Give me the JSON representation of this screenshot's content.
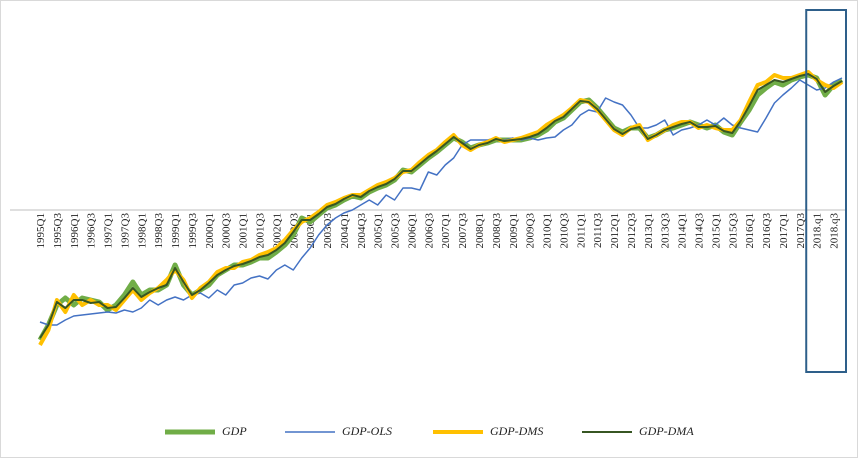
{
  "chart_data": {
    "type": "line",
    "categories": [
      "1995Q1",
      null,
      "1995Q3",
      null,
      "1996Q1",
      null,
      "1996Q3",
      null,
      "1997Q1",
      null,
      "1997Q3",
      null,
      "1998Q1",
      null,
      "1998Q3",
      null,
      "1999Q1",
      null,
      "1999Q3",
      null,
      "2000Q1",
      null,
      "2000Q3",
      null,
      "2001Q1",
      null,
      "2001Q3",
      null,
      "2002Q1",
      null,
      "2002Q3",
      null,
      "2003Q1",
      null,
      "2003Q3",
      null,
      "2004Q1",
      null,
      "2004Q3",
      null,
      "2005Q1",
      null,
      "2005Q3",
      null,
      "2006Q1",
      null,
      "2006Q3",
      null,
      "2007Q1",
      null,
      "2007Q3",
      null,
      "2008Q1",
      null,
      "2008Q3",
      null,
      "2009Q1",
      null,
      "2009Q3",
      null,
      "2010Q1",
      null,
      "2010Q3",
      null,
      "2011Q1",
      null,
      "2011Q3",
      null,
      "2012Q1",
      null,
      "2012Q3",
      null,
      "2013Q1",
      null,
      "2013Q3",
      null,
      "2014Q1",
      null,
      "2014Q3",
      null,
      "2015Q1",
      null,
      "2015Q3",
      null,
      "2016Q1",
      null,
      "2016Q3",
      null,
      "2017Q1",
      null,
      "2017Q3",
      null,
      "2018.q1",
      null,
      "2018.q3",
      null
    ],
    "series": [
      {
        "name": "GDP",
        "color": "#70ad47",
        "values": [
          -13,
          -11.5,
          -9.5,
          -8.8,
          -9.5,
          -8.8,
          -9,
          -9.2,
          -10,
          -9.5,
          -8.5,
          -7.2,
          -8.5,
          -8,
          -8,
          -7.5,
          -5.5,
          -7.5,
          -8.5,
          -8,
          -7.5,
          -6.5,
          -6,
          -5.5,
          -5.5,
          -5.2,
          -4.8,
          -4.8,
          -4.2,
          -3.5,
          -2.5,
          -0.8,
          -1.2,
          -0.5,
          0.2,
          0.5,
          1,
          1.4,
          1.2,
          1.8,
          2.2,
          2.5,
          3,
          4,
          3.8,
          4.5,
          5.2,
          5.8,
          6.5,
          7.2,
          6.8,
          6.2,
          6.5,
          6.7,
          7,
          7,
          7,
          7,
          7.2,
          7.5,
          8,
          8.8,
          9.2,
          10,
          10.8,
          11,
          10.2,
          9.2,
          8.2,
          7.8,
          8.2,
          8.2,
          7.2,
          7.5,
          8,
          8.2,
          8.5,
          8.8,
          8.5,
          8.2,
          8.5,
          7.8,
          7.5,
          8.8,
          10,
          11.5,
          12.2,
          12.8,
          12.5,
          13,
          13.3,
          13.5,
          13.2,
          11.5,
          12.5,
          13
        ]
      },
      {
        "name": "GDP-OLS",
        "color": "#4472c4",
        "values": [
          -11.2,
          -11.5,
          -11.5,
          -11,
          -10.6,
          -10.5,
          -10.4,
          -10.3,
          -10.2,
          -10.3,
          -10,
          -10.2,
          -9.8,
          -9,
          -9.5,
          -9,
          -8.7,
          -9,
          -8.5,
          -8.3,
          -8.8,
          -8,
          -8.5,
          -7.5,
          -7.3,
          -6.8,
          -6.6,
          -6.9,
          -6,
          -5.5,
          -6,
          -4.8,
          -3.8,
          -2.5,
          -1.5,
          -0.8,
          -0.3,
          0,
          0.5,
          1,
          0.5,
          1.5,
          1,
          2.2,
          2.2,
          2,
          3.8,
          3.5,
          4.5,
          5.2,
          6.5,
          7,
          7,
          7,
          7.2,
          7,
          7.2,
          7,
          7.2,
          7,
          7.2,
          7.3,
          8,
          8.5,
          9.5,
          10,
          9.8,
          11.2,
          10.8,
          10.5,
          9.5,
          8.2,
          8.2,
          8.5,
          9,
          7.5,
          8,
          8.2,
          8.5,
          9,
          8.5,
          9.2,
          8.5,
          8.2,
          8,
          7.8,
          9.2,
          10.7,
          11.5,
          12.2,
          13,
          12.5,
          12,
          12.2,
          12.8,
          13.2
        ]
      },
      {
        "name": "GDP-DMS",
        "color": "#ffc000",
        "values": [
          -13.5,
          -12,
          -9,
          -10.2,
          -8.5,
          -9.5,
          -9,
          -9.5,
          -9.5,
          -10,
          -9,
          -8,
          -9,
          -8.3,
          -7.8,
          -7,
          -6,
          -7,
          -8.8,
          -7.8,
          -7.2,
          -6.2,
          -5.8,
          -5.8,
          -5.2,
          -5,
          -4.5,
          -4.2,
          -3.8,
          -3,
          -2,
          -1.2,
          -0.8,
          -0.2,
          0.5,
          0.8,
          1.2,
          1.5,
          1.5,
          2,
          2.5,
          2.8,
          3.2,
          3.8,
          4,
          4.8,
          5.5,
          6,
          6.8,
          7.5,
          6.5,
          6,
          6.5,
          6.8,
          7.2,
          6.8,
          7,
          7.2,
          7.5,
          7.8,
          8.5,
          9,
          9.5,
          10.2,
          11,
          10.8,
          10,
          9,
          8,
          7.5,
          8.2,
          8.5,
          7,
          7.5,
          8,
          8.5,
          8.8,
          8.8,
          8.2,
          8.5,
          8.2,
          8,
          8,
          9,
          10.8,
          12.5,
          12.8,
          13.5,
          13.2,
          13.2,
          13.5,
          13.8,
          13,
          12.5,
          12.2,
          12.8
        ]
      },
      {
        "name": "GDP-DMA",
        "color": "#375623",
        "values": [
          -12.8,
          -11.5,
          -9.2,
          -9.8,
          -9,
          -9,
          -9.3,
          -9.2,
          -9.8,
          -9.7,
          -8.8,
          -7.8,
          -8.7,
          -8.2,
          -7.8,
          -7.5,
          -5.8,
          -7.2,
          -8.5,
          -8,
          -7.3,
          -6.5,
          -6,
          -5.6,
          -5.4,
          -5.1,
          -4.7,
          -4.5,
          -4,
          -3.3,
          -2.2,
          -1,
          -1,
          -0.4,
          0.3,
          0.6,
          1.1,
          1.5,
          1.3,
          1.9,
          2.3,
          2.6,
          3.1,
          3.9,
          3.9,
          4.6,
          5.3,
          5.9,
          6.6,
          7.3,
          6.7,
          6.1,
          6.5,
          6.7,
          7.1,
          6.9,
          7,
          7.1,
          7.3,
          7.6,
          8.2,
          8.9,
          9.3,
          10.1,
          10.9,
          10.8,
          10.1,
          9.1,
          8.1,
          7.6,
          8.1,
          8.3,
          7.1,
          7.5,
          8,
          8.3,
          8.6,
          8.8,
          8.3,
          8.3,
          8.4,
          7.9,
          7.7,
          8.9,
          10.4,
          12,
          12.5,
          13,
          12.8,
          13.1,
          13.4,
          13.6,
          13.1,
          11.8,
          12.4,
          12.9
        ]
      }
    ],
    "ylim": [
      -15,
      20
    ],
    "legend": "bottom"
  }
}
